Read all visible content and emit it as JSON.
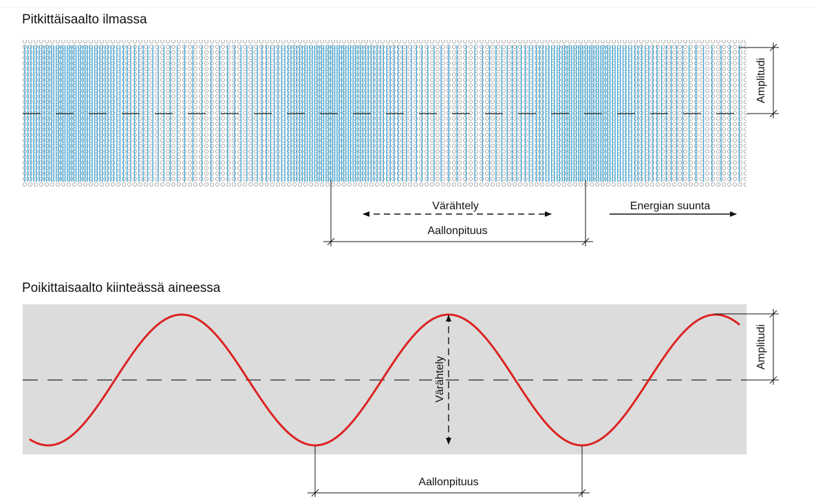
{
  "longitudinal": {
    "title": "Pitkittäisaalto ilmassa",
    "amplitude_label": "Amplitudi",
    "vibration_label": "Värähtely",
    "energy_label": "Energian suunta",
    "wavelength_label": "Aallonpituus",
    "particle_color": "#3aa7d8",
    "dot_color": "#9a9a9a"
  },
  "transverse": {
    "title": "Poikittaisaalto kiinteässä aineessa",
    "amplitude_label": "Amplitudi",
    "vibration_label": "Värähtely",
    "wavelength_label": "Aallonpituus",
    "medium_color": "#dcdcdc",
    "wave_color": "#dd2222"
  }
}
